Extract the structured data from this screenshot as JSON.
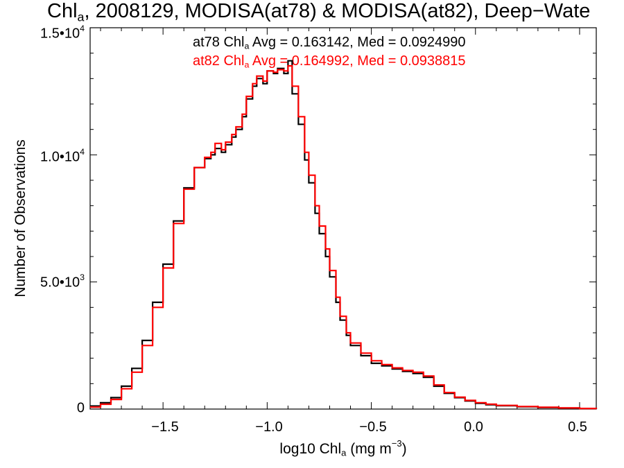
{
  "chart_data": {
    "type": "line",
    "title": {
      "pre": "Chl",
      "sub": "a",
      "post": ", 2008129, MODISA(at78) & MODISA(at82), Deep−Wate"
    },
    "xlabel": {
      "pre": "log10 Chl",
      "sub": "a",
      "post": " (mg m",
      "sup": "−3",
      "end": ")"
    },
    "ylabel": "Number of Observations",
    "xlim": [
      -1.85,
      0.58
    ],
    "ylim": [
      0,
      15000
    ],
    "x_ticks": [
      "−1.5",
      "−1.0",
      "−0.5",
      "0.0",
      "0.5"
    ],
    "x_tick_values": [
      -1.5,
      -1.0,
      -0.5,
      0.0,
      0.5
    ],
    "y_ticks": [
      {
        "value": 0,
        "base": "0",
        "exp": ""
      },
      {
        "value": 5000,
        "base": "5.0•10",
        "exp": "3"
      },
      {
        "value": 10000,
        "base": "1.0•10",
        "exp": "4"
      },
      {
        "value": 15000,
        "base": "1.5•10",
        "exp": "4"
      }
    ],
    "grid": false,
    "legend_position": "top-center",
    "stats": [
      {
        "pre": "at78 Chl",
        "sub": "a",
        "post": " Avg = 0.163142, Med = 0.0924990",
        "color": "#000000"
      },
      {
        "pre": "at82 Chl",
        "sub": "a",
        "post": " Avg = 0.164992, Med = 0.0938815",
        "color": "#ff0000"
      }
    ],
    "series": [
      {
        "color": "#000000",
        "x": [
          -1.85,
          -1.8,
          -1.75,
          -1.7,
          -1.65,
          -1.6,
          -1.55,
          -1.5,
          -1.45,
          -1.4,
          -1.35,
          -1.3,
          -1.27,
          -1.25,
          -1.22,
          -1.2,
          -1.17,
          -1.15,
          -1.12,
          -1.1,
          -1.07,
          -1.05,
          -1.02,
          -1.0,
          -0.97,
          -0.95,
          -0.92,
          -0.9,
          -0.88,
          -0.85,
          -0.82,
          -0.8,
          -0.77,
          -0.75,
          -0.72,
          -0.7,
          -0.67,
          -0.65,
          -0.62,
          -0.6,
          -0.55,
          -0.5,
          -0.45,
          -0.4,
          -0.35,
          -0.3,
          -0.25,
          -0.2,
          -0.15,
          -0.1,
          -0.05,
          0.0,
          0.05,
          0.1,
          0.2,
          0.3,
          0.4,
          0.5,
          0.58
        ],
        "y": [
          120,
          250,
          450,
          900,
          1600,
          2700,
          4200,
          5700,
          7400,
          8700,
          9500,
          9850,
          10000,
          10250,
          10100,
          10400,
          10700,
          11000,
          11500,
          12200,
          12700,
          13000,
          12800,
          13300,
          13200,
          13400,
          13200,
          13700,
          12400,
          11200,
          9800,
          8900,
          7700,
          6900,
          6000,
          5200,
          4200,
          3500,
          2900,
          2500,
          2100,
          1800,
          1700,
          1580,
          1480,
          1400,
          1250,
          900,
          620,
          450,
          320,
          230,
          170,
          130,
          90,
          60,
          40,
          20,
          5
        ]
      },
      {
        "color": "#ff0000",
        "x": [
          -1.85,
          -1.8,
          -1.75,
          -1.7,
          -1.65,
          -1.6,
          -1.55,
          -1.5,
          -1.45,
          -1.4,
          -1.35,
          -1.3,
          -1.27,
          -1.25,
          -1.22,
          -1.2,
          -1.17,
          -1.15,
          -1.12,
          -1.1,
          -1.07,
          -1.05,
          -1.02,
          -1.0,
          -0.97,
          -0.95,
          -0.92,
          -0.9,
          -0.88,
          -0.85,
          -0.82,
          -0.8,
          -0.77,
          -0.75,
          -0.72,
          -0.7,
          -0.67,
          -0.65,
          -0.62,
          -0.6,
          -0.55,
          -0.5,
          -0.45,
          -0.4,
          -0.35,
          -0.3,
          -0.25,
          -0.2,
          -0.15,
          -0.1,
          -0.05,
          0.0,
          0.05,
          0.1,
          0.2,
          0.3,
          0.4,
          0.5,
          0.58
        ],
        "y": [
          80,
          190,
          380,
          800,
          1450,
          2500,
          4000,
          5550,
          7300,
          8650,
          9500,
          9900,
          10100,
          10450,
          10200,
          10500,
          10800,
          11100,
          11600,
          12300,
          12800,
          13100,
          12900,
          13300,
          13250,
          13350,
          13300,
          13500,
          12700,
          11500,
          10100,
          9200,
          8000,
          7200,
          6300,
          5450,
          4400,
          3650,
          3000,
          2600,
          2200,
          1900,
          1750,
          1620,
          1520,
          1450,
          1300,
          950,
          650,
          470,
          340,
          250,
          190,
          145,
          100,
          70,
          45,
          25,
          8
        ]
      }
    ]
  }
}
